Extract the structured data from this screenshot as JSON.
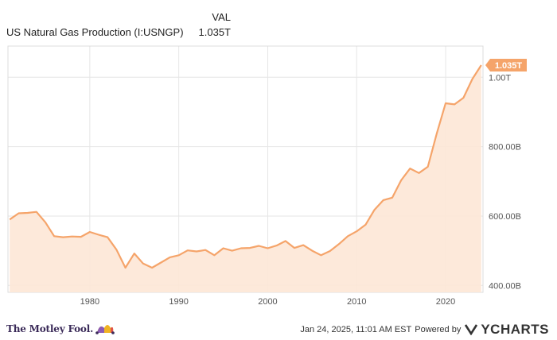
{
  "header": {
    "val_label": "VAL",
    "series_name": "US Natural Gas Production (I:USNGP)",
    "series_value": "1.035T"
  },
  "chart_data": {
    "type": "area",
    "title": "",
    "xlabel": "",
    "ylabel": "",
    "x_ticks": [
      "1980",
      "1990",
      "2000",
      "2010",
      "2020"
    ],
    "y_ticks": [
      "400.00B",
      "600.00B",
      "800.00B",
      "1.00T"
    ],
    "y_tick_values": [
      400,
      600,
      800,
      1000
    ],
    "ylim": [
      380,
      1090
    ],
    "xlim": [
      1970.8,
      2024.2
    ],
    "grid": true,
    "colors": {
      "line": "#f5a46a",
      "fill": "#fde7d6",
      "grid": "#e6e6e6",
      "label_bg": "#f5a46a"
    },
    "last_value_label": "1.035T",
    "series": [
      {
        "name": "US Natural Gas Production",
        "unit": "B",
        "points": [
          [
            1971,
            590
          ],
          [
            1972,
            608
          ],
          [
            1973,
            609
          ],
          [
            1974,
            612
          ],
          [
            1975,
            582
          ],
          [
            1976,
            542
          ],
          [
            1977,
            539
          ],
          [
            1978,
            541
          ],
          [
            1979,
            540
          ],
          [
            1980,
            554
          ],
          [
            1981,
            546
          ],
          [
            1982,
            539
          ],
          [
            1983,
            503
          ],
          [
            1984,
            451
          ],
          [
            1985,
            492
          ],
          [
            1986,
            463
          ],
          [
            1987,
            451
          ],
          [
            1988,
            466
          ],
          [
            1989,
            481
          ],
          [
            1990,
            487
          ],
          [
            1991,
            501
          ],
          [
            1992,
            498
          ],
          [
            1993,
            502
          ],
          [
            1994,
            487
          ],
          [
            1995,
            507
          ],
          [
            1996,
            500
          ],
          [
            1997,
            507
          ],
          [
            1998,
            508
          ],
          [
            1999,
            514
          ],
          [
            2000,
            507
          ],
          [
            2001,
            515
          ],
          [
            2002,
            528
          ],
          [
            2003,
            508
          ],
          [
            2004,
            516
          ],
          [
            2005,
            500
          ],
          [
            2006,
            487
          ],
          [
            2007,
            499
          ],
          [
            2008,
            519
          ],
          [
            2009,
            542
          ],
          [
            2010,
            556
          ],
          [
            2011,
            575
          ],
          [
            2012,
            618
          ],
          [
            2013,
            646
          ],
          [
            2014,
            653
          ],
          [
            2015,
            703
          ],
          [
            2016,
            737
          ],
          [
            2017,
            724
          ],
          [
            2018,
            742
          ],
          [
            2019,
            838
          ],
          [
            2020,
            925
          ],
          [
            2021,
            922
          ],
          [
            2022,
            941
          ],
          [
            2023,
            995
          ],
          [
            2024,
            1035
          ]
        ]
      }
    ]
  },
  "footer": {
    "brand": "The Motley Fool.",
    "timestamp": "Jan 24, 2025, 11:01 AM EST",
    "powered_by": "Powered by",
    "ycharts_brand": "YCHARTS"
  }
}
